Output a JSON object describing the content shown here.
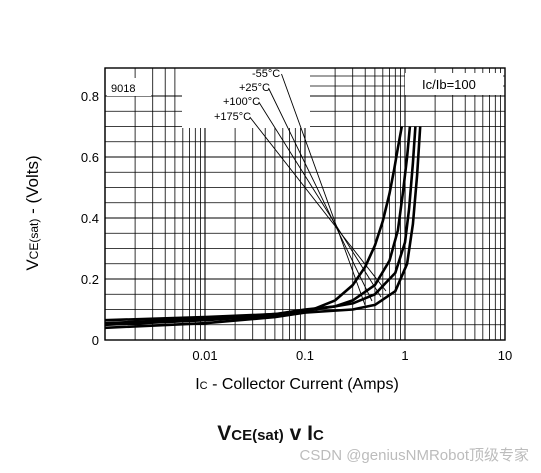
{
  "chart_data": {
    "type": "line",
    "id_label": "9018",
    "condition_label": "Ic/Ib=100",
    "xlabel_prefix": "I",
    "xlabel_sub": "C",
    "xlabel_rest": " - Collector Current (Amps)",
    "ylabel_prefix": "V",
    "ylabel_sub": "CE(sat)",
    "ylabel_rest": " - (Volts)",
    "x_scale": "log",
    "xlim": [
      0.001,
      10
    ],
    "ylim": [
      0,
      0.8
    ],
    "x_ticks": [
      {
        "v": 0.01,
        "label": "0.01"
      },
      {
        "v": 0.1,
        "label": "0.1"
      },
      {
        "v": 1,
        "label": "1"
      },
      {
        "v": 10,
        "label": "10"
      }
    ],
    "y_ticks": [
      {
        "v": 0,
        "label": "0"
      },
      {
        "v": 0.2,
        "label": "0.2"
      },
      {
        "v": 0.4,
        "label": "0.4"
      },
      {
        "v": 0.6,
        "label": "0.6"
      },
      {
        "v": 0.8,
        "label": "0.8"
      }
    ],
    "grid": true,
    "series": [
      {
        "name": "-55°C",
        "x": [
          0.001,
          0.01,
          0.05,
          0.1,
          0.2,
          0.3,
          0.4,
          0.5,
          0.6,
          0.7,
          0.78,
          0.85,
          0.93
        ],
        "y": [
          0.04,
          0.055,
          0.075,
          0.09,
          0.13,
          0.18,
          0.24,
          0.31,
          0.39,
          0.48,
          0.56,
          0.63,
          0.7
        ]
      },
      {
        "name": "+25°C",
        "x": [
          0.001,
          0.01,
          0.05,
          0.1,
          0.2,
          0.3,
          0.5,
          0.7,
          0.85,
          0.95,
          1.05,
          1.12
        ],
        "y": [
          0.05,
          0.065,
          0.08,
          0.095,
          0.11,
          0.13,
          0.18,
          0.26,
          0.36,
          0.48,
          0.6,
          0.7
        ]
      },
      {
        "name": "+100°C",
        "x": [
          0.001,
          0.01,
          0.05,
          0.1,
          0.2,
          0.3,
          0.5,
          0.8,
          1.0,
          1.1,
          1.2,
          1.27
        ],
        "y": [
          0.055,
          0.07,
          0.085,
          0.1,
          0.11,
          0.12,
          0.15,
          0.22,
          0.32,
          0.43,
          0.58,
          0.7
        ]
      },
      {
        "name": "+175°C",
        "x": [
          0.001,
          0.01,
          0.05,
          0.1,
          0.3,
          0.5,
          0.8,
          1.05,
          1.2,
          1.32,
          1.42
        ],
        "y": [
          0.065,
          0.075,
          0.085,
          0.09,
          0.1,
          0.115,
          0.16,
          0.25,
          0.38,
          0.54,
          0.7
        ]
      }
    ]
  },
  "caption": {
    "prefix": "V",
    "sub": "CE(sat)",
    "mid": " v I",
    "sub2": "C"
  },
  "watermark": "CSDN @geniusNMRobot顶级专家"
}
